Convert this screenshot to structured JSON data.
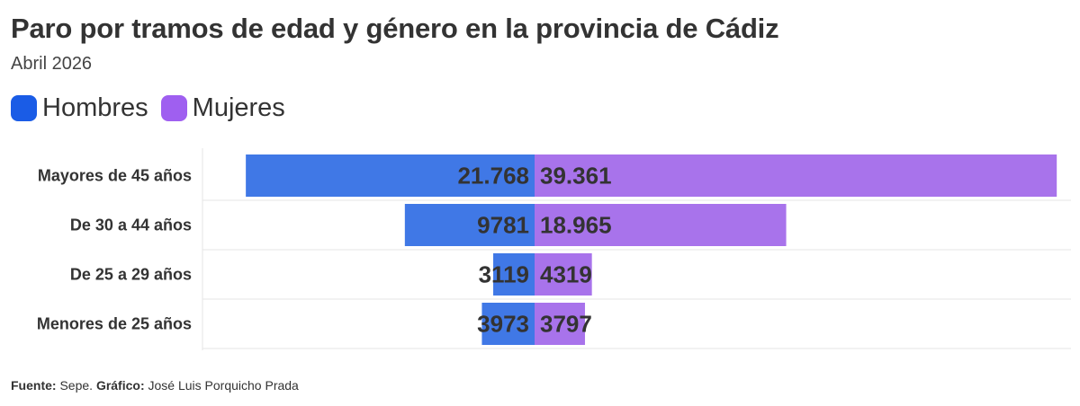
{
  "header": {
    "title": "Paro por tramos de edad y género en la provincia de Cádiz",
    "subtitle": "Abril 2026"
  },
  "footer": {
    "source_label": "Fuente:",
    "source_value": "Sepe.",
    "credit_label": "Gráfico:",
    "credit_value": "José Luis Porquicho Prada"
  },
  "colors": {
    "hombres": "#4078e6",
    "mujeres": "#a873eb",
    "legend_hombres": "#1a5ce6",
    "legend_mujeres": "#9f5ff0",
    "grid": "#e6e6e6",
    "label": "#333333"
  },
  "chart_data": {
    "type": "bar",
    "orientation": "horizontal-diverging",
    "categories": [
      "Mayores de 45 años",
      "De 30 a 44 años",
      "De 25 a 29 años",
      "Menores de 25 años"
    ],
    "series": [
      {
        "name": "Hombres",
        "values": [
          21768,
          9781,
          3119,
          3973
        ],
        "labels": [
          "21.768",
          "9781",
          "3119",
          "3973"
        ]
      },
      {
        "name": "Mujeres",
        "values": [
          39361,
          18965,
          4319,
          3797
        ],
        "labels": [
          "39.361",
          "18.965",
          "4319",
          "3797"
        ]
      }
    ],
    "legend_position": "top-left",
    "grid": true
  }
}
